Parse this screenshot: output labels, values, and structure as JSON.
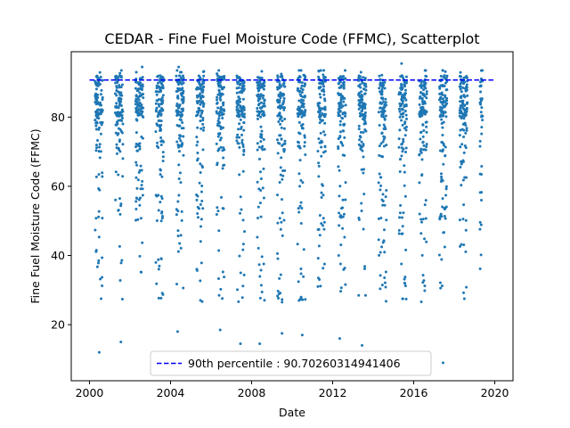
{
  "chart_data": {
    "type": "scatter",
    "title": "CEDAR - Fine Fuel Moisture Code (FFMC), Scatterplot",
    "xlabel": "Date",
    "ylabel": "Fine Fuel Moisture Code (FFMC)",
    "xlim": [
      1999.1,
      2020.9
    ],
    "ylim": [
      3.8,
      98.9
    ],
    "x_ticks": [
      2000,
      2004,
      2008,
      2012,
      2016,
      2020
    ],
    "y_ticks": [
      20,
      40,
      60,
      80
    ],
    "grid": false,
    "legend_position": "lower-center",
    "point_color": "#1f77b4",
    "reference_line": {
      "label": "90th percentile : 90.70260314941406",
      "value": 90.70260314941406,
      "x_range": [
        2000.0,
        2020.0
      ],
      "color": "#0000ff",
      "style": "dashed"
    },
    "seasons": [
      {
        "year": 2000,
        "start": 2000.27,
        "end": 2000.65
      },
      {
        "year": 2001,
        "start": 2001.27,
        "end": 2001.65
      },
      {
        "year": 2002,
        "start": 2002.27,
        "end": 2002.65
      },
      {
        "year": 2003,
        "start": 2003.27,
        "end": 2003.65
      },
      {
        "year": 2004,
        "start": 2004.27,
        "end": 2004.65
      },
      {
        "year": 2005,
        "start": 2005.27,
        "end": 2005.65
      },
      {
        "year": 2006,
        "start": 2006.27,
        "end": 2006.65
      },
      {
        "year": 2007,
        "start": 2007.27,
        "end": 2007.65
      },
      {
        "year": 2008,
        "start": 2008.27,
        "end": 2008.65
      },
      {
        "year": 2009,
        "start": 2009.27,
        "end": 2009.65
      },
      {
        "year": 2010,
        "start": 2010.27,
        "end": 2010.65
      },
      {
        "year": 2011,
        "start": 2011.27,
        "end": 2011.65
      },
      {
        "year": 2012,
        "start": 2012.27,
        "end": 2012.65
      },
      {
        "year": 2013,
        "start": 2013.27,
        "end": 2013.65
      },
      {
        "year": 2014,
        "start": 2014.27,
        "end": 2014.65
      },
      {
        "year": 2015,
        "start": 2015.27,
        "end": 2015.65
      },
      {
        "year": 2016,
        "start": 2016.27,
        "end": 2016.65
      },
      {
        "year": 2017,
        "start": 2017.27,
        "end": 2017.65
      },
      {
        "year": 2018,
        "start": 2018.27,
        "end": 2018.65
      },
      {
        "year": 2019,
        "start": 2019.27,
        "end": 2019.4
      }
    ],
    "notable_points": [
      {
        "x": 2000.48,
        "y": 12.0
      },
      {
        "x": 2001.55,
        "y": 15.0
      },
      {
        "x": 2004.35,
        "y": 18.0
      },
      {
        "x": 2006.45,
        "y": 18.5
      },
      {
        "x": 2007.45,
        "y": 14.5
      },
      {
        "x": 2008.4,
        "y": 14.5
      },
      {
        "x": 2009.5,
        "y": 17.5
      },
      {
        "x": 2010.5,
        "y": 17.0
      },
      {
        "x": 2012.35,
        "y": 16.0
      },
      {
        "x": 2013.45,
        "y": 14.0
      },
      {
        "x": 2017.45,
        "y": 9.0
      },
      {
        "x": 2015.4,
        "y": 95.5
      },
      {
        "x": 2004.4,
        "y": 94.5
      },
      {
        "x": 2002.6,
        "y": 94.5
      }
    ]
  }
}
